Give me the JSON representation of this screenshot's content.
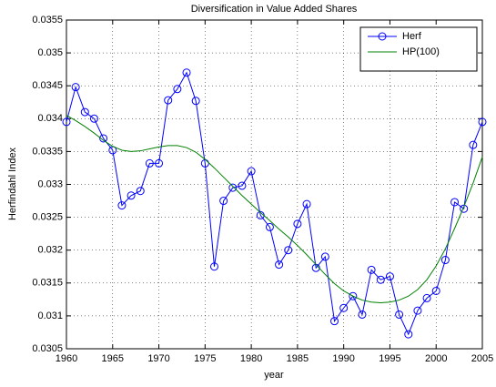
{
  "chart_data": {
    "type": "line",
    "title": "Diversification in Value Added Shares",
    "x_label": "year",
    "y_label": "Herfindahl Index",
    "x": [
      1960,
      1961,
      1962,
      1963,
      1964,
      1965,
      1966,
      1967,
      1968,
      1969,
      1970,
      1971,
      1972,
      1973,
      1974,
      1975,
      1976,
      1977,
      1978,
      1979,
      1980,
      1981,
      1982,
      1983,
      1984,
      1985,
      1986,
      1987,
      1988,
      1989,
      1990,
      1991,
      1992,
      1993,
      1994,
      1995,
      1996,
      1997,
      1998,
      1999,
      2000,
      2001,
      2002,
      2003,
      2004,
      2005
    ],
    "series": [
      {
        "name": "Herf",
        "color": "#0000ff",
        "marker": "circle",
        "values": [
          0.03395,
          0.03448,
          0.0341,
          0.034,
          0.0337,
          0.03352,
          0.03268,
          0.03283,
          0.0329,
          0.03332,
          0.03332,
          0.03428,
          0.03445,
          0.0347,
          0.03427,
          0.03332,
          0.03175,
          0.03275,
          0.03295,
          0.03298,
          0.0332,
          0.03253,
          0.03235,
          0.03178,
          0.032,
          0.0324,
          0.0327,
          0.03173,
          0.0319,
          0.03092,
          0.03112,
          0.0313,
          0.03102,
          0.0317,
          0.03155,
          0.0316,
          0.03102,
          0.03072,
          0.03108,
          0.03127,
          0.03138,
          0.03185,
          0.03273,
          0.03263,
          0.0336,
          0.03395
        ]
      },
      {
        "name": "HP(100)",
        "color": "#008000",
        "values": [
          0.03405,
          0.03397,
          0.03388,
          0.03378,
          0.03367,
          0.03358,
          0.03352,
          0.0335,
          0.03351,
          0.03354,
          0.03357,
          0.03359,
          0.03359,
          0.03356,
          0.03349,
          0.03338,
          0.03325,
          0.03311,
          0.03297,
          0.03283,
          0.0327,
          0.03257,
          0.03245,
          0.03232,
          0.0322,
          0.03207,
          0.03193,
          0.03178,
          0.03163,
          0.03149,
          0.03138,
          0.0313,
          0.03124,
          0.03121,
          0.0312,
          0.03121,
          0.03124,
          0.0313,
          0.0314,
          0.03155,
          0.03176,
          0.03202,
          0.03233,
          0.03266,
          0.03302,
          0.03342
        ]
      }
    ],
    "xlim": [
      1960,
      2005
    ],
    "xticks": [
      1960,
      1965,
      1970,
      1975,
      1980,
      1985,
      1990,
      1995,
      2000,
      2005
    ],
    "ylim": [
      0.0305,
      0.0355
    ],
    "yticks": [
      0.0305,
      0.031,
      0.0315,
      0.032,
      0.0325,
      0.033,
      0.0335,
      0.034,
      0.0345,
      0.035,
      0.0355
    ],
    "grid": true,
    "legend": "northeast"
  }
}
